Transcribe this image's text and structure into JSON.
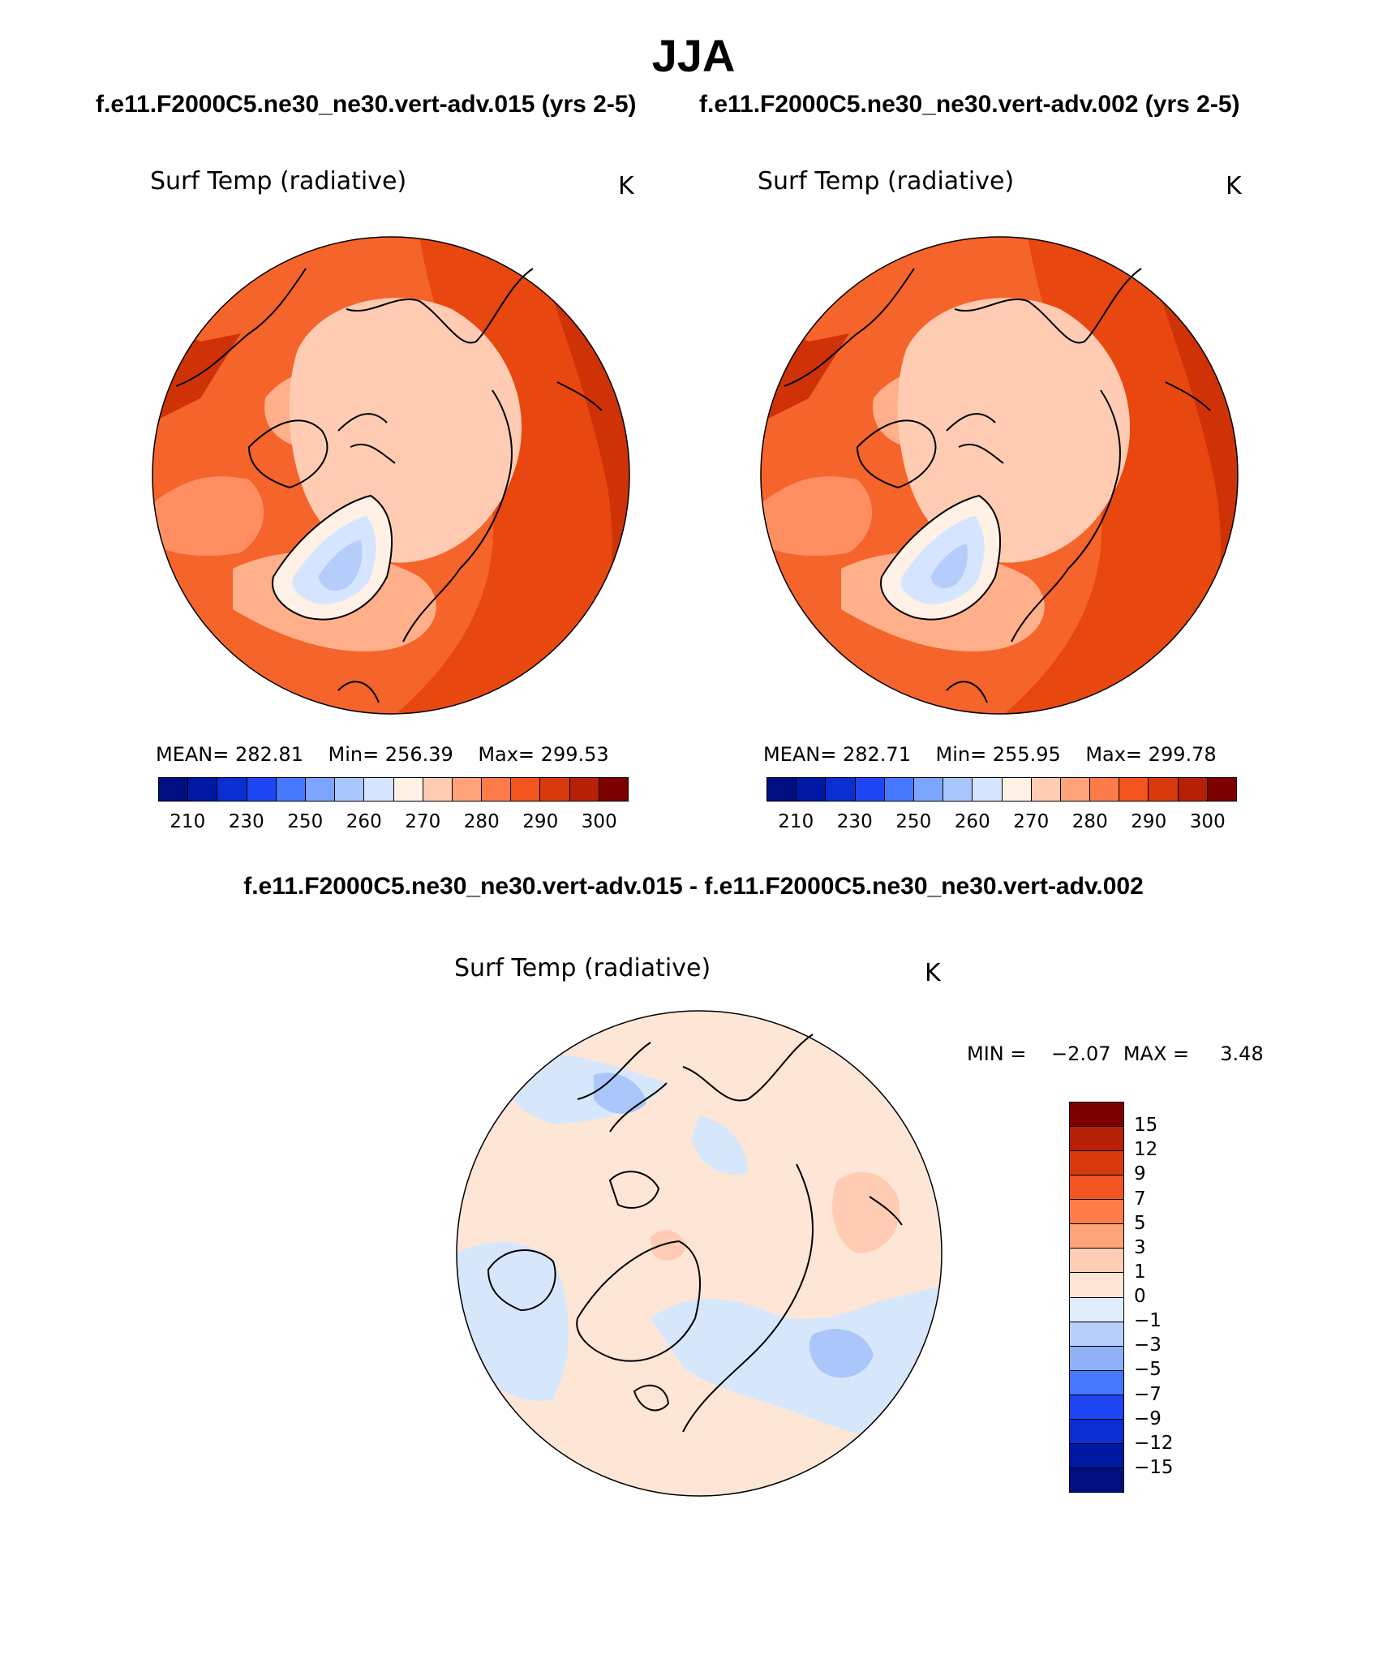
{
  "main_title": "JJA",
  "panels": [
    {
      "case_title": "f.e11.F2000C5.ne30_ne30.vert-adv.015 (yrs 2-5)",
      "var_title": "Surf Temp (radiative)",
      "units": "K",
      "mean_label": "MEAN= 282.81",
      "min_label": "Min= 256.39",
      "max_label": "Max= 299.53"
    },
    {
      "case_title": "f.e11.F2000C5.ne30_ne30.vert-adv.002 (yrs 2-5)",
      "var_title": "Surf Temp (radiative)",
      "units": "K",
      "mean_label": "MEAN= 282.71",
      "min_label": "Min= 255.95",
      "max_label": "Max= 299.78"
    }
  ],
  "abs_colorbar": {
    "tick_labels": [
      "210",
      "230",
      "250",
      "260",
      "270",
      "280",
      "290",
      "300"
    ],
    "colors": [
      "#000f7f",
      "#0019a5",
      "#0a2ed2",
      "#1e46f5",
      "#4678ff",
      "#7ca5ff",
      "#aac6ff",
      "#d6e5ff",
      "#fff1e6",
      "#ffccb3",
      "#ffa37a",
      "#ff7b4a",
      "#f25520",
      "#d93a0d",
      "#b52007",
      "#7d0000"
    ]
  },
  "diff": {
    "title": "f.e11.F2000C5.ne30_ne30.vert-adv.015 - f.e11.F2000C5.ne30_ne30.vert-adv.002",
    "var_title": "Surf Temp (radiative)",
    "units": "K",
    "min_label": "MIN =",
    "min_value": "−2.07",
    "max_label": "MAX =",
    "max_value": "3.48",
    "tick_labels": [
      "15",
      "12",
      "9",
      "7",
      "5",
      "3",
      "1",
      "0",
      "−1",
      "−3",
      "−5",
      "−7",
      "−9",
      "−12",
      "−15"
    ],
    "colors": [
      "#7d0000",
      "#b52007",
      "#d93a0d",
      "#f25520",
      "#ff7b4a",
      "#ffa37a",
      "#ffccb3",
      "#fde6d6",
      "#deecfb",
      "#b7cff9",
      "#8fb0f7",
      "#4678ff",
      "#1e46f5",
      "#0a2ed2",
      "#0019a5",
      "#000f7f"
    ]
  },
  "map_colors": {
    "ocean_warm": "#e8470f",
    "ocean_mid": "#f5642a",
    "edge_dark": "#d03207",
    "land_hot": "#ff8f63",
    "land_warm": "#ffb08a",
    "arctic": "#ffccb3",
    "ice_edge": "#fff1e6",
    "ice_cold": "#d6e5ff",
    "ice_core": "#b6cdfc",
    "diff_pos": "#fde6d6",
    "diff_neg": "#d6e7fb",
    "diff_neg2": "#aac6fa",
    "diff_pos2": "#ffccb3"
  }
}
